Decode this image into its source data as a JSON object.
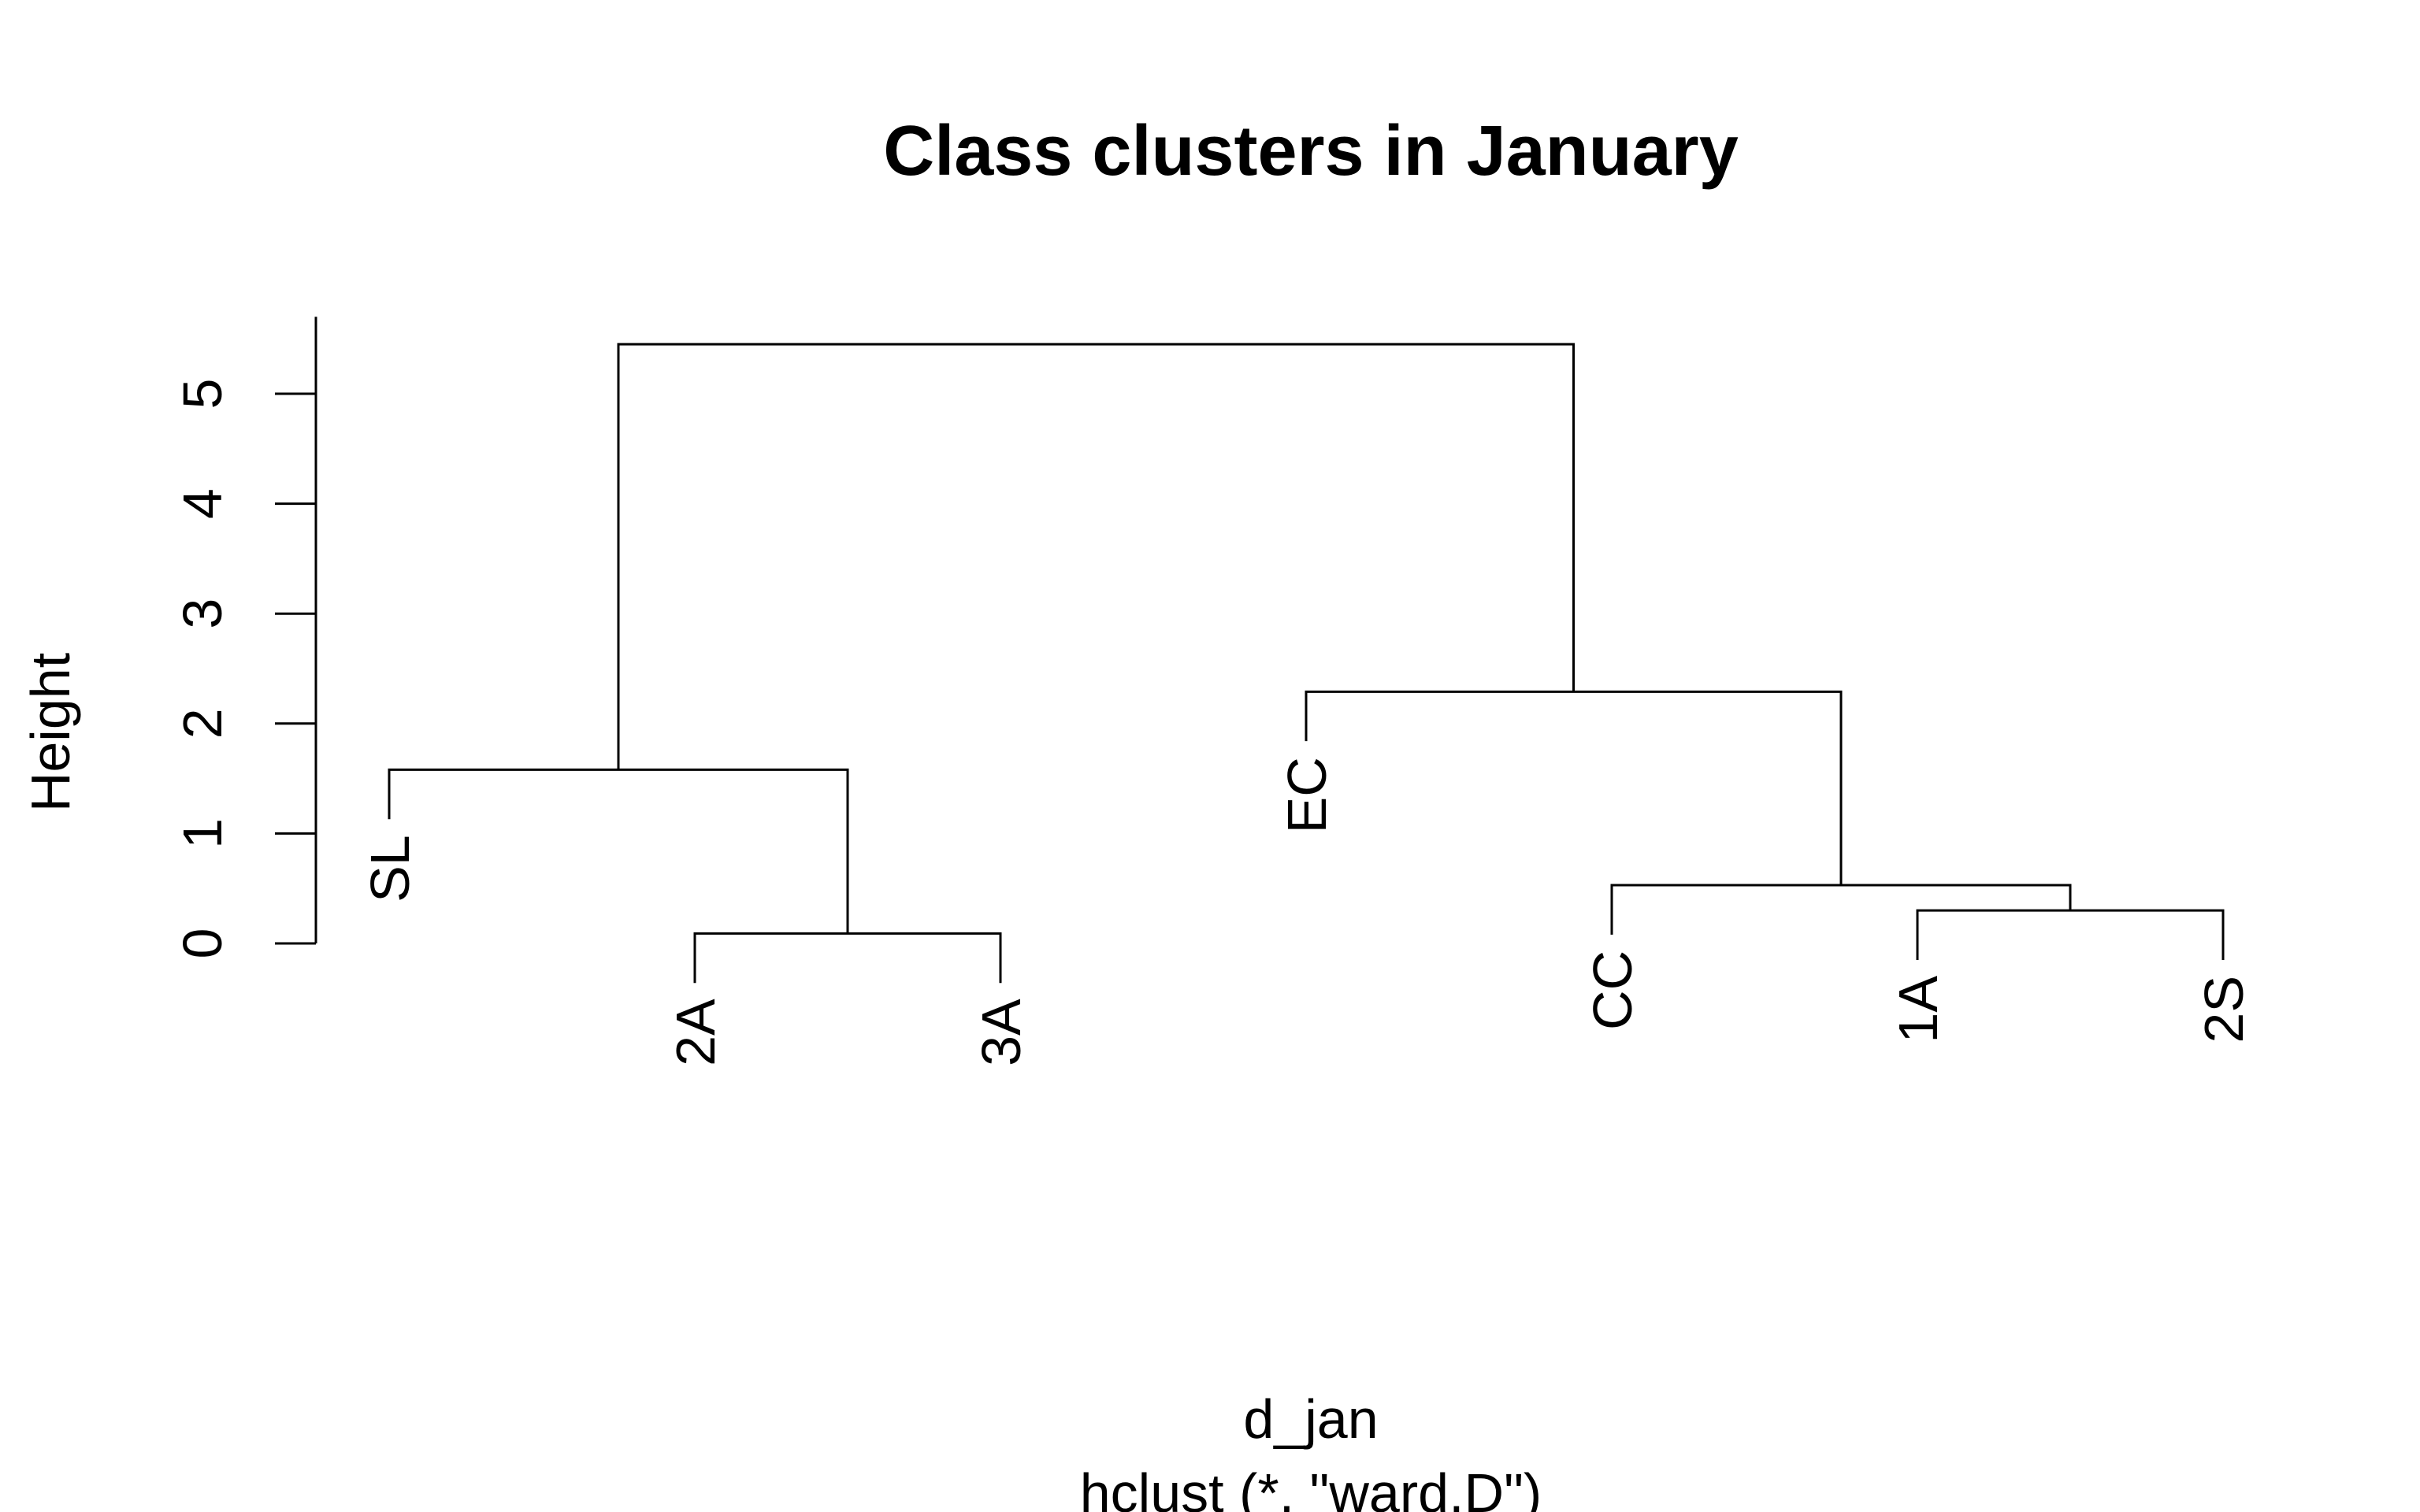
{
  "chart_data": {
    "type": "dendrogram",
    "title": "Class clusters in January",
    "xlabel": "d_jan",
    "subtitle": "hclust (*, \"ward.D\")",
    "ylabel": "Height",
    "ylim": [
      0,
      5.7
    ],
    "y_ticks": [
      0,
      1,
      2,
      3,
      4,
      5
    ],
    "grid": false,
    "leaves": [
      {
        "label": "SL",
        "height": 1.58
      },
      {
        "label": "2A",
        "height": 0.09
      },
      {
        "label": "3A",
        "height": 0.09
      },
      {
        "label": "EC",
        "height": 2.29
      },
      {
        "label": "CC",
        "height": 0.53
      },
      {
        "label": "1A",
        "height": 0.3
      },
      {
        "label": "2S",
        "height": 0.3
      }
    ],
    "merges": [
      {
        "left": "leaf:2A",
        "right": "leaf:3A",
        "height": 0.09
      },
      {
        "left": "leaf:1A",
        "right": "leaf:2S",
        "height": 0.3
      },
      {
        "left": "leaf:CC",
        "right": "node:2",
        "height": 0.53
      },
      {
        "left": "leaf:SL",
        "right": "node:1",
        "height": 1.58
      },
      {
        "left": "leaf:EC",
        "right": "node:3",
        "height": 2.29
      },
      {
        "left": "node:4",
        "right": "node:5",
        "height": 5.45
      }
    ]
  }
}
